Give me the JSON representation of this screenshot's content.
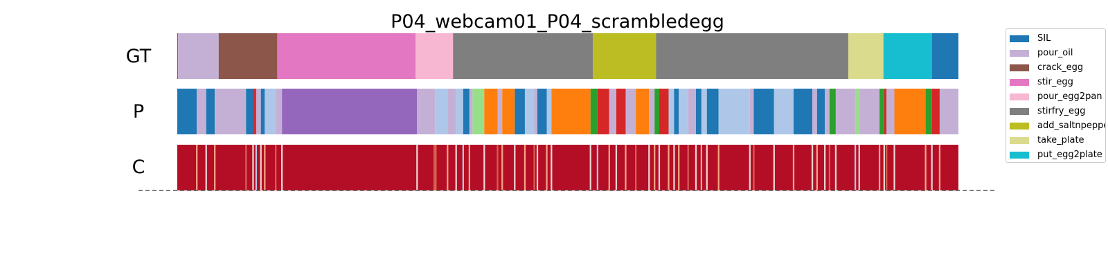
{
  "chart_data": {
    "type": "heatmap",
    "title": "P04_webcam01_P04_scrambledegg",
    "xlabel": "",
    "ylabel": "",
    "rows": [
      "GT",
      "P",
      "C"
    ],
    "xlim": [
      0,
      1
    ],
    "legend_position": "right",
    "classes": [
      {
        "name": "SIL",
        "color": "#1f77b4"
      },
      {
        "name": "pour_oil",
        "color": "#c5b0d5"
      },
      {
        "name": "crack_egg",
        "color": "#8c564b"
      },
      {
        "name": "stir_egg",
        "color": "#e377c2"
      },
      {
        "name": "pour_egg2pan",
        "color": "#f7b6d2"
      },
      {
        "name": "stirfry_egg",
        "color": "#7f7f7f"
      },
      {
        "name": "add_saltnpepper",
        "color": "#bcbd22"
      },
      {
        "name": "take_plate",
        "color": "#dbdb8d"
      },
      {
        "name": "put_egg2plate",
        "color": "#17becf"
      }
    ],
    "gt_segments": [
      {
        "start": 0.0,
        "end": 0.053,
        "label": "pour_oil",
        "color": "#c5b0d5"
      },
      {
        "start": 0.053,
        "end": 0.128,
        "label": "crack_egg",
        "color": "#8c564b"
      },
      {
        "start": 0.128,
        "end": 0.305,
        "label": "stir_egg",
        "color": "#e377c2"
      },
      {
        "start": 0.305,
        "end": 0.353,
        "label": "pour_egg2pan",
        "color": "#f7b6d2"
      },
      {
        "start": 0.353,
        "end": 0.532,
        "label": "stirfry_egg",
        "color": "#7f7f7f"
      },
      {
        "start": 0.532,
        "end": 0.613,
        "label": "add_saltnpepper",
        "color": "#bcbd22"
      },
      {
        "start": 0.613,
        "end": 0.859,
        "label": "stirfry_egg",
        "color": "#7f7f7f"
      },
      {
        "start": 0.859,
        "end": 0.904,
        "label": "take_plate",
        "color": "#dbdb8d"
      },
      {
        "start": 0.904,
        "end": 0.966,
        "label": "put_egg2plate",
        "color": "#17becf"
      },
      {
        "start": 0.966,
        "end": 1.0,
        "label": "SIL",
        "color": "#1f77b4"
      }
    ],
    "p_segments": [
      {
        "start": 0.0,
        "end": 0.025,
        "color": "#1f77b4"
      },
      {
        "start": 0.025,
        "end": 0.037,
        "color": "#c5b0d5"
      },
      {
        "start": 0.037,
        "end": 0.048,
        "color": "#1f77b4"
      },
      {
        "start": 0.048,
        "end": 0.088,
        "color": "#c5b0d5"
      },
      {
        "start": 0.088,
        "end": 0.097,
        "color": "#1f77b4"
      },
      {
        "start": 0.097,
        "end": 0.101,
        "color": "#d62728"
      },
      {
        "start": 0.101,
        "end": 0.107,
        "color": "#c5b0d5"
      },
      {
        "start": 0.107,
        "end": 0.112,
        "color": "#1f77b4"
      },
      {
        "start": 0.112,
        "end": 0.126,
        "color": "#aec7e8"
      },
      {
        "start": 0.126,
        "end": 0.134,
        "color": "#c5b0d5"
      },
      {
        "start": 0.134,
        "end": 0.307,
        "color": "#9467bd"
      },
      {
        "start": 0.307,
        "end": 0.33,
        "color": "#c5b0d5"
      },
      {
        "start": 0.33,
        "end": 0.346,
        "color": "#aec7e8"
      },
      {
        "start": 0.346,
        "end": 0.357,
        "color": "#c5b0d5"
      },
      {
        "start": 0.357,
        "end": 0.366,
        "color": "#aec7e8"
      },
      {
        "start": 0.366,
        "end": 0.374,
        "color": "#1f77b4"
      },
      {
        "start": 0.374,
        "end": 0.378,
        "color": "#c5b0d5"
      },
      {
        "start": 0.378,
        "end": 0.393,
        "color": "#98df8a"
      },
      {
        "start": 0.393,
        "end": 0.41,
        "color": "#ff7f0e"
      },
      {
        "start": 0.41,
        "end": 0.416,
        "color": "#c5b0d5"
      },
      {
        "start": 0.416,
        "end": 0.432,
        "color": "#ff7f0e"
      },
      {
        "start": 0.432,
        "end": 0.445,
        "color": "#1f77b4"
      },
      {
        "start": 0.445,
        "end": 0.457,
        "color": "#aec7e8"
      },
      {
        "start": 0.457,
        "end": 0.461,
        "color": "#c5b0d5"
      },
      {
        "start": 0.461,
        "end": 0.473,
        "color": "#1f77b4"
      },
      {
        "start": 0.473,
        "end": 0.479,
        "color": "#aec7e8"
      },
      {
        "start": 0.479,
        "end": 0.529,
        "color": "#ff7f0e"
      },
      {
        "start": 0.529,
        "end": 0.538,
        "color": "#2ca02c"
      },
      {
        "start": 0.538,
        "end": 0.553,
        "color": "#d62728"
      },
      {
        "start": 0.553,
        "end": 0.562,
        "color": "#c5b0d5"
      },
      {
        "start": 0.562,
        "end": 0.574,
        "color": "#d62728"
      },
      {
        "start": 0.574,
        "end": 0.587,
        "color": "#c5b0d5"
      },
      {
        "start": 0.587,
        "end": 0.604,
        "color": "#ff7f0e"
      },
      {
        "start": 0.604,
        "end": 0.611,
        "color": "#c5b0d5"
      },
      {
        "start": 0.611,
        "end": 0.617,
        "color": "#2ca02c"
      },
      {
        "start": 0.617,
        "end": 0.629,
        "color": "#d62728"
      },
      {
        "start": 0.629,
        "end": 0.636,
        "color": "#aec7e8"
      },
      {
        "start": 0.636,
        "end": 0.642,
        "color": "#1f77b4"
      },
      {
        "start": 0.642,
        "end": 0.654,
        "color": "#aec7e8"
      },
      {
        "start": 0.654,
        "end": 0.664,
        "color": "#c5b0d5"
      },
      {
        "start": 0.664,
        "end": 0.671,
        "color": "#1f77b4"
      },
      {
        "start": 0.671,
        "end": 0.678,
        "color": "#aec7e8"
      },
      {
        "start": 0.678,
        "end": 0.693,
        "color": "#1f77b4"
      },
      {
        "start": 0.693,
        "end": 0.733,
        "color": "#aec7e8"
      },
      {
        "start": 0.733,
        "end": 0.738,
        "color": "#c5b0d5"
      },
      {
        "start": 0.738,
        "end": 0.764,
        "color": "#1f77b4"
      },
      {
        "start": 0.764,
        "end": 0.789,
        "color": "#aec7e8"
      },
      {
        "start": 0.789,
        "end": 0.813,
        "color": "#1f77b4"
      },
      {
        "start": 0.813,
        "end": 0.819,
        "color": "#c5b0d5"
      },
      {
        "start": 0.819,
        "end": 0.829,
        "color": "#1f77b4"
      },
      {
        "start": 0.829,
        "end": 0.835,
        "color": "#c5b0d5"
      },
      {
        "start": 0.835,
        "end": 0.843,
        "color": "#2ca02c"
      },
      {
        "start": 0.843,
        "end": 0.868,
        "color": "#c5b0d5"
      },
      {
        "start": 0.868,
        "end": 0.873,
        "color": "#98df8a"
      },
      {
        "start": 0.873,
        "end": 0.899,
        "color": "#c5b0d5"
      },
      {
        "start": 0.899,
        "end": 0.905,
        "color": "#2ca02c"
      },
      {
        "start": 0.905,
        "end": 0.908,
        "color": "#d62728"
      },
      {
        "start": 0.908,
        "end": 0.918,
        "color": "#c5b0d5"
      },
      {
        "start": 0.918,
        "end": 0.958,
        "color": "#ff7f0e"
      },
      {
        "start": 0.958,
        "end": 0.966,
        "color": "#2ca02c"
      },
      {
        "start": 0.966,
        "end": 0.976,
        "color": "#d62728"
      },
      {
        "start": 0.976,
        "end": 1.0,
        "color": "#c5b0d5"
      }
    ],
    "c_base_color": "#b40e26",
    "c_dips": [
      {
        "x": 0.025,
        "w": 0.002,
        "color": "#f4a582"
      },
      {
        "x": 0.037,
        "w": 0.002,
        "color": "#e8d5d0"
      },
      {
        "x": 0.048,
        "w": 0.002,
        "color": "#f4a582"
      },
      {
        "x": 0.088,
        "w": 0.002,
        "color": "#d6604d"
      },
      {
        "x": 0.097,
        "w": 0.002,
        "color": "#e8d5d0"
      },
      {
        "x": 0.101,
        "w": 0.002,
        "color": "#b8c8e0"
      },
      {
        "x": 0.107,
        "w": 0.002,
        "color": "#e8d5d0"
      },
      {
        "x": 0.112,
        "w": 0.002,
        "color": "#f4a582"
      },
      {
        "x": 0.126,
        "w": 0.002,
        "color": "#d6604d"
      },
      {
        "x": 0.134,
        "w": 0.002,
        "color": "#e8d5d0"
      },
      {
        "x": 0.307,
        "w": 0.002,
        "color": "#e8d5d0"
      },
      {
        "x": 0.33,
        "w": 0.004,
        "color": "#d6604d"
      },
      {
        "x": 0.346,
        "w": 0.002,
        "color": "#f4a582"
      },
      {
        "x": 0.357,
        "w": 0.002,
        "color": "#e8d5d0"
      },
      {
        "x": 0.366,
        "w": 0.002,
        "color": "#b8c8e0"
      },
      {
        "x": 0.374,
        "w": 0.002,
        "color": "#f4a582"
      },
      {
        "x": 0.393,
        "w": 0.002,
        "color": "#e8d5d0"
      },
      {
        "x": 0.41,
        "w": 0.002,
        "color": "#d6604d"
      },
      {
        "x": 0.416,
        "w": 0.002,
        "color": "#f4a582"
      },
      {
        "x": 0.432,
        "w": 0.002,
        "color": "#e8d5d0"
      },
      {
        "x": 0.445,
        "w": 0.002,
        "color": "#f4a582"
      },
      {
        "x": 0.457,
        "w": 0.002,
        "color": "#d6604d"
      },
      {
        "x": 0.461,
        "w": 0.002,
        "color": "#e8d5d0"
      },
      {
        "x": 0.473,
        "w": 0.002,
        "color": "#f4a582"
      },
      {
        "x": 0.479,
        "w": 0.002,
        "color": "#e8d5d0"
      },
      {
        "x": 0.529,
        "w": 0.002,
        "color": "#e8d5d0"
      },
      {
        "x": 0.538,
        "w": 0.002,
        "color": "#b8c8e0"
      },
      {
        "x": 0.553,
        "w": 0.002,
        "color": "#f4a582"
      },
      {
        "x": 0.562,
        "w": 0.002,
        "color": "#e8d5d0"
      },
      {
        "x": 0.574,
        "w": 0.002,
        "color": "#f4a582"
      },
      {
        "x": 0.587,
        "w": 0.002,
        "color": "#d6604d"
      },
      {
        "x": 0.604,
        "w": 0.002,
        "color": "#e8d5d0"
      },
      {
        "x": 0.611,
        "w": 0.002,
        "color": "#f4a582"
      },
      {
        "x": 0.617,
        "w": 0.002,
        "color": "#e8d5d0"
      },
      {
        "x": 0.629,
        "w": 0.002,
        "color": "#f4a582"
      },
      {
        "x": 0.636,
        "w": 0.002,
        "color": "#e8d5d0"
      },
      {
        "x": 0.642,
        "w": 0.002,
        "color": "#f4a582"
      },
      {
        "x": 0.654,
        "w": 0.002,
        "color": "#d6604d"
      },
      {
        "x": 0.664,
        "w": 0.002,
        "color": "#e8d5d0"
      },
      {
        "x": 0.671,
        "w": 0.002,
        "color": "#f4a582"
      },
      {
        "x": 0.678,
        "w": 0.002,
        "color": "#e8d5d0"
      },
      {
        "x": 0.693,
        "w": 0.002,
        "color": "#f4a582"
      },
      {
        "x": 0.733,
        "w": 0.002,
        "color": "#e8d5d0"
      },
      {
        "x": 0.738,
        "w": 0.002,
        "color": "#d6604d"
      },
      {
        "x": 0.764,
        "w": 0.002,
        "color": "#e8d5d0"
      },
      {
        "x": 0.789,
        "w": 0.002,
        "color": "#f4a582"
      },
      {
        "x": 0.813,
        "w": 0.002,
        "color": "#e8d5d0"
      },
      {
        "x": 0.819,
        "w": 0.002,
        "color": "#f4a582"
      },
      {
        "x": 0.829,
        "w": 0.002,
        "color": "#e8d5d0"
      },
      {
        "x": 0.835,
        "w": 0.002,
        "color": "#d6604d"
      },
      {
        "x": 0.843,
        "w": 0.002,
        "color": "#e8d5d0"
      },
      {
        "x": 0.868,
        "w": 0.002,
        "color": "#b8c8e0"
      },
      {
        "x": 0.873,
        "w": 0.002,
        "color": "#e8d5d0"
      },
      {
        "x": 0.899,
        "w": 0.002,
        "color": "#f4a582"
      },
      {
        "x": 0.905,
        "w": 0.002,
        "color": "#e8d5d0"
      },
      {
        "x": 0.908,
        "w": 0.002,
        "color": "#d6604d"
      },
      {
        "x": 0.918,
        "w": 0.002,
        "color": "#e8d5d0"
      },
      {
        "x": 0.958,
        "w": 0.002,
        "color": "#f4a582"
      },
      {
        "x": 0.966,
        "w": 0.002,
        "color": "#e8d5d0"
      },
      {
        "x": 0.976,
        "w": 0.002,
        "color": "#f4a582"
      }
    ]
  }
}
